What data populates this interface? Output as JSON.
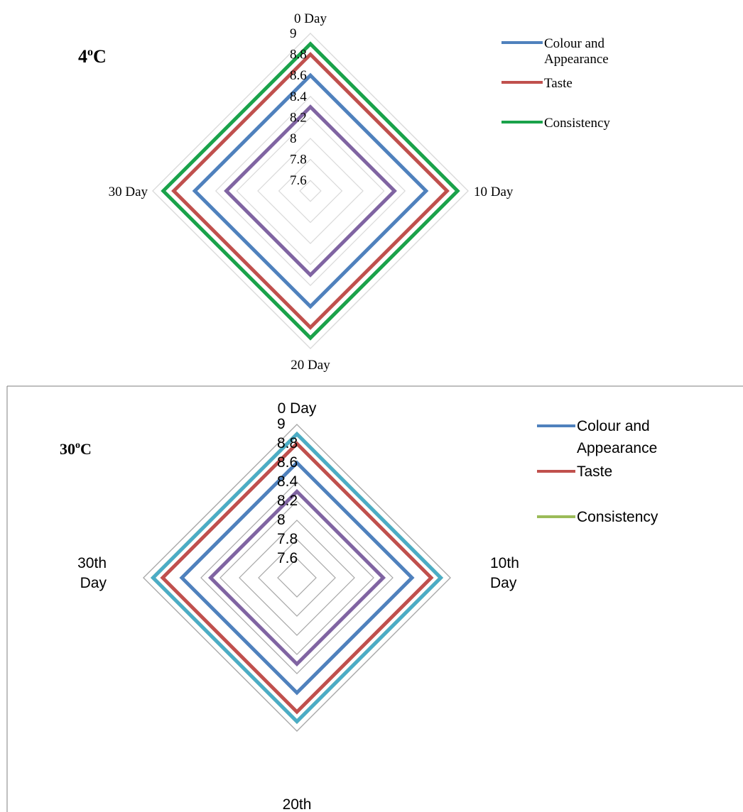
{
  "chart_data": [
    {
      "type": "radar",
      "title": "4oC",
      "title_main": "4",
      "title_sup": "o",
      "title_rest": "C",
      "categories": [
        "0 Day",
        "10 Day",
        "20 Day",
        "30 Day"
      ],
      "radial_ticks": [
        "9",
        "8.8",
        "8.6",
        "8.4",
        "8.2",
        "8",
        "7.8",
        "7.6"
      ],
      "rmin": 7.5,
      "rmax": 9.0,
      "legend_position": "top-right",
      "legend": [
        "Colour and Appearance",
        "Taste",
        "Consistency"
      ],
      "series": [
        {
          "name": "Colour and Appearance",
          "color": "#4f81bd",
          "values": [
            8.6,
            8.6,
            8.6,
            8.6
          ]
        },
        {
          "name": "Taste",
          "color": "#c0504d",
          "values": [
            8.8,
            8.8,
            8.8,
            8.8
          ]
        },
        {
          "color": "#1aa24a",
          "values": [
            8.9,
            8.9,
            8.9,
            8.9
          ]
        },
        {
          "color": "#8064a2",
          "values": [
            8.3,
            8.3,
            8.3,
            8.3
          ]
        }
      ]
    },
    {
      "type": "radar",
      "title": "30oC",
      "title_main": "30",
      "title_sup": "o",
      "title_rest": "C",
      "categories": [
        "0  Day",
        "10th Day",
        "20th",
        "30th Day"
      ],
      "category_lines": [
        [
          "0  Day"
        ],
        [
          "10th",
          "Day"
        ],
        [
          "20th"
        ],
        [
          "30th",
          "Day"
        ]
      ],
      "radial_ticks": [
        "9",
        "8.8",
        "8.6",
        "8.4",
        "8.2",
        "8",
        "7.8",
        "7.6"
      ],
      "rmin": 7.4,
      "rmax": 9.0,
      "legend_position": "top-right",
      "legend": [
        "Colour and Appearance",
        "Taste",
        "Consistency"
      ],
      "series": [
        {
          "name": "Colour and Appearance",
          "color": "#4f81bd",
          "values": [
            8.6,
            8.6,
            8.6,
            8.6
          ]
        },
        {
          "name": "Taste",
          "color": "#c0504d",
          "values": [
            8.8,
            8.8,
            8.8,
            8.8
          ]
        },
        {
          "name": "Consistency",
          "color": "#9bbb59",
          "values": [
            8.9,
            8.9,
            8.9,
            8.9
          ]
        },
        {
          "color": "#4bacc6",
          "values": [
            8.9,
            8.9,
            8.9,
            8.9
          ]
        },
        {
          "color": "#8064a2",
          "values": [
            8.3,
            8.3,
            8.3,
            8.3
          ]
        }
      ]
    }
  ]
}
